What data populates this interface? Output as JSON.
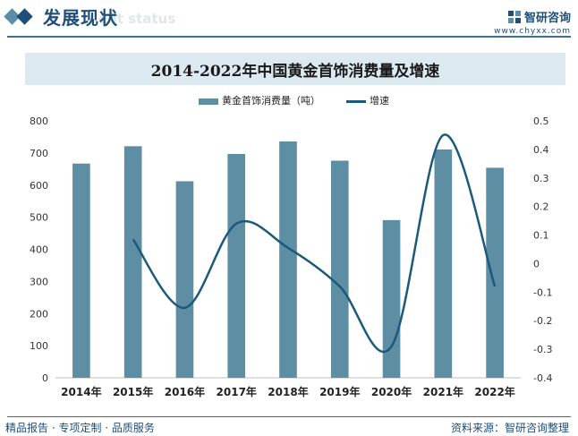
{
  "header": {
    "section_title": "发展现状",
    "section_subtitle": "ent status",
    "brand_name": "智研咨询",
    "brand_url": "www.chyxx.com"
  },
  "footer": {
    "left_text": "精品报告 · 专项定制 · 品质服务",
    "source_text": "资料来源：智研咨询整理"
  },
  "colors": {
    "bar": "#5e8ea3",
    "line": "#1b5a7a",
    "accent": "#1f4e79",
    "title_bg": "#dce9f1"
  },
  "chart_data": {
    "type": "bar",
    "title": "2014-2022年中国黄金首饰消费量及增速",
    "categories": [
      "2014年",
      "2015年",
      "2016年",
      "2017年",
      "2018年",
      "2019年",
      "2020年",
      "2021年",
      "2022年"
    ],
    "series": [
      {
        "name": "黄金首饰消费量（吨）",
        "type": "bar",
        "axis": "left",
        "values": [
          667,
          721,
          612,
          697,
          736,
          676,
          491,
          711,
          654
        ]
      },
      {
        "name": "增速",
        "type": "line",
        "axis": "right",
        "values": [
          null,
          0.085,
          -0.155,
          0.14,
          0.055,
          -0.08,
          -0.29,
          0.45,
          -0.08
        ]
      }
    ],
    "y_left": {
      "range": [
        0,
        800
      ],
      "ticks": [
        "0",
        "100",
        "200",
        "300",
        "400",
        "500",
        "600",
        "700",
        "800"
      ]
    },
    "y_right": {
      "range": [
        -0.4,
        0.5
      ],
      "ticks": [
        "-0.4",
        "-0.3",
        "-0.2",
        "-0.1",
        "0",
        "0.1",
        "0.2",
        "0.3",
        "0.4",
        "0.5"
      ]
    },
    "grid": false,
    "legend_position": "top-center"
  }
}
